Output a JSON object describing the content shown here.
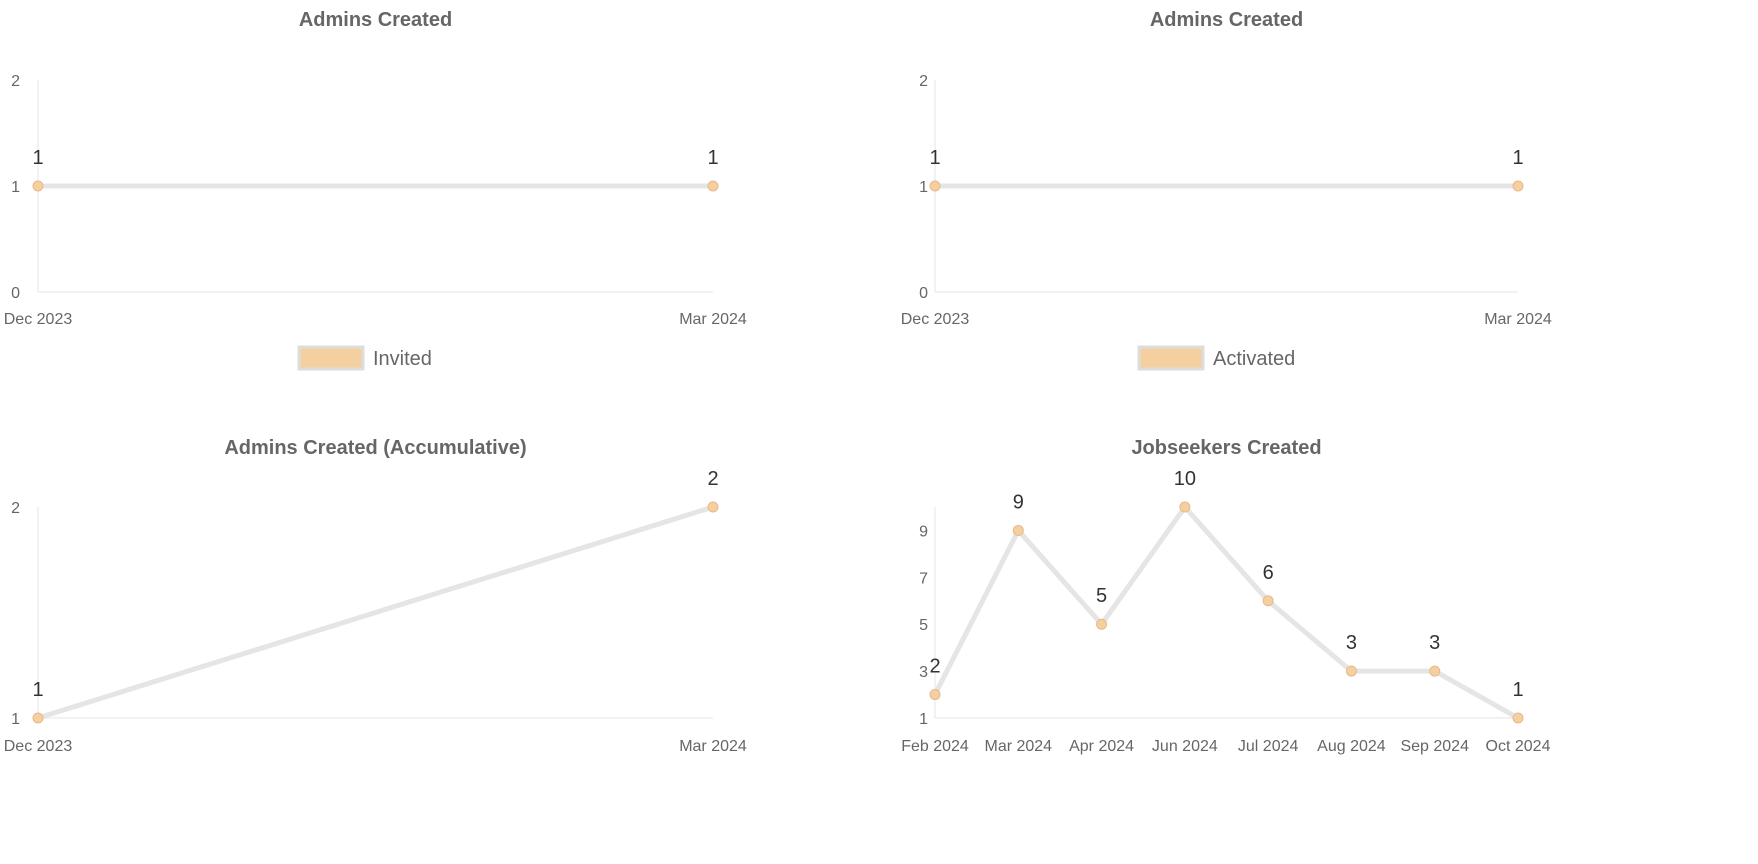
{
  "colors": {
    "line": "#e5e5e5",
    "point_fill": "#f4cfa0",
    "point_stroke": "#e8b98a",
    "axis": "#e6e6e6",
    "legend_fill": "#f4cfa0",
    "legend_stroke": "#dddddd"
  },
  "chart_data": [
    {
      "type": "line",
      "title": "Admins Created",
      "categories": [
        "Dec 2023",
        "Mar 2024"
      ],
      "series": [
        {
          "name": "Invited",
          "values": [
            1,
            1
          ]
        }
      ],
      "yticks": [
        "0",
        "1",
        "2"
      ],
      "ylim": [
        0,
        2
      ],
      "grid": false,
      "legend": "bottom-center"
    },
    {
      "type": "line",
      "title": "Admins Created",
      "categories": [
        "Dec 2023",
        "Mar 2024"
      ],
      "series": [
        {
          "name": "Activated",
          "values": [
            1,
            1
          ]
        }
      ],
      "yticks": [
        "0",
        "1",
        "2"
      ],
      "ylim": [
        0,
        2
      ],
      "grid": false,
      "legend": "bottom-center"
    },
    {
      "type": "line",
      "title": "Admins Created (Accumulative)",
      "categories": [
        "Dec 2023",
        "Mar 2024"
      ],
      "series": [
        {
          "values": [
            1,
            2
          ]
        }
      ],
      "yticks": [
        "1",
        "2"
      ],
      "ylim": [
        1,
        2
      ],
      "grid": false
    },
    {
      "type": "line",
      "title": "Jobseekers Created",
      "categories": [
        "Feb 2024",
        "Mar 2024",
        "Apr 2024",
        "Jun 2024",
        "Jul 2024",
        "Aug 2024",
        "Sep 2024",
        "Oct 2024"
      ],
      "series": [
        {
          "values": [
            2,
            9,
            5,
            10,
            6,
            3,
            3,
            1
          ]
        }
      ],
      "yticks": [
        "1",
        "3",
        "5",
        "7",
        "9"
      ],
      "ylim": [
        1,
        10
      ],
      "grid": false
    }
  ]
}
